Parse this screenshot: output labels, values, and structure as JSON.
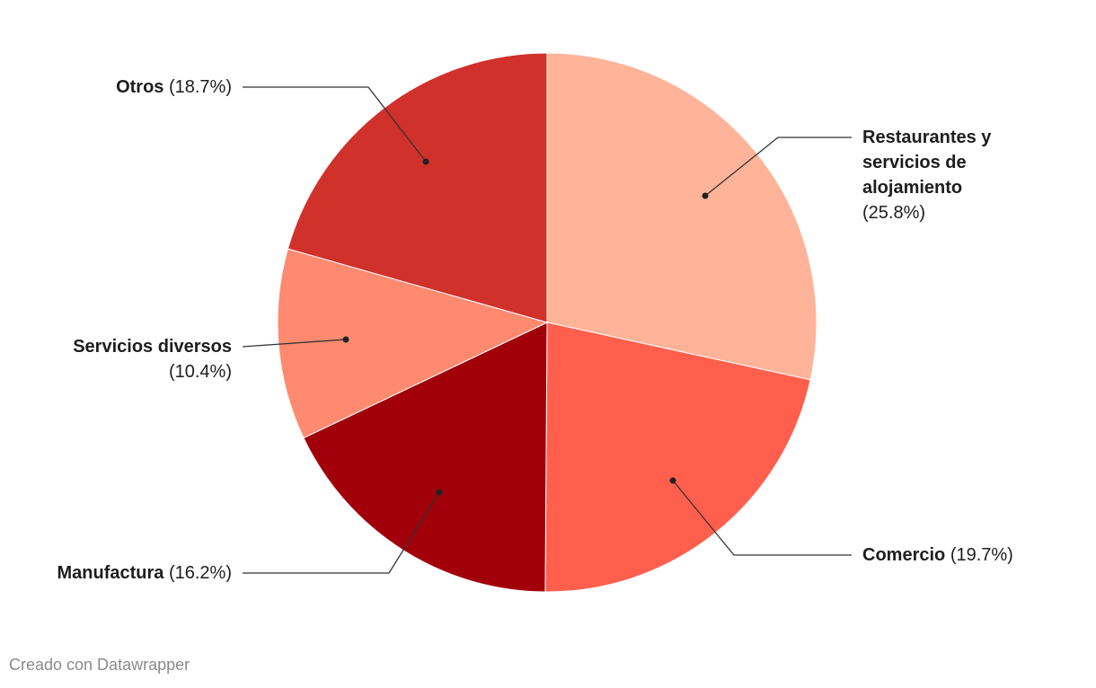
{
  "chart_data": {
    "type": "pie",
    "categories": [
      "Restaurantes y servicios de alojamiento",
      "Comercio",
      "Manufactura",
      "Servicios diversos",
      "Otros"
    ],
    "values": [
      25.8,
      19.7,
      16.2,
      10.4,
      18.7
    ],
    "value_labels": [
      "(25.8%)",
      "(19.7%)",
      "(16.2%)",
      "(10.4%)",
      "(18.7%)"
    ],
    "colors": [
      "#ffb399",
      "#ff5f4c",
      "#a1000b",
      "#ff8a70",
      "#d1312b"
    ],
    "footer": "Creado con Datawrapper"
  }
}
